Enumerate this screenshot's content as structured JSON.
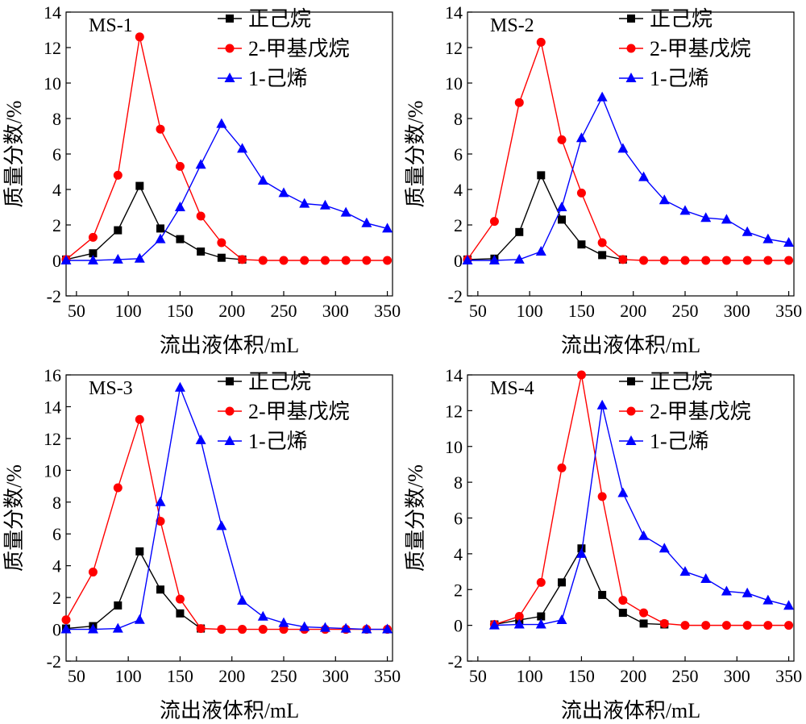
{
  "figure": {
    "panel_count": 4
  },
  "chart_data": [
    {
      "type": "line",
      "title": "MS-1",
      "xlabel": "流出液体积/mL",
      "ylabel": "质量分数/%",
      "xlim": [
        40,
        355
      ],
      "ylim": [
        -2,
        14
      ],
      "xticks": [
        50,
        100,
        150,
        200,
        250,
        300,
        350
      ],
      "yticks": [
        -2,
        0,
        2,
        4,
        6,
        8,
        10,
        12,
        14
      ],
      "legend_position": "top-right",
      "series": [
        {
          "name": "正己烷",
          "color": "#000000",
          "marker": "square",
          "x": [
            40,
            66,
            90,
            111,
            131,
            150,
            170,
            190,
            210
          ],
          "y": [
            0.05,
            0.4,
            1.7,
            4.2,
            1.8,
            1.2,
            0.5,
            0.15,
            0.05
          ]
        },
        {
          "name": "2-甲基戊烷",
          "color": "#ff0000",
          "marker": "circle",
          "x": [
            40,
            66,
            90,
            111,
            131,
            150,
            170,
            190,
            210,
            230,
            250,
            270,
            290,
            310,
            330,
            350
          ],
          "y": [
            0.05,
            1.3,
            4.8,
            12.6,
            7.4,
            5.3,
            2.5,
            1.0,
            0.05,
            0,
            0,
            0,
            0,
            0,
            0,
            0
          ]
        },
        {
          "name": "1-己烯",
          "color": "#0000ff",
          "marker": "triangle",
          "x": [
            40,
            66,
            90,
            111,
            131,
            150,
            170,
            190,
            210,
            230,
            250,
            270,
            290,
            310,
            330,
            350
          ],
          "y": [
            0,
            0,
            0.05,
            0.1,
            1.2,
            3.0,
            5.4,
            7.7,
            6.3,
            4.5,
            3.8,
            3.2,
            3.1,
            2.7,
            2.1,
            1.8
          ]
        }
      ]
    },
    {
      "type": "line",
      "title": "MS-2",
      "xlabel": "流出液体积/mL",
      "ylabel": "质量分数/%",
      "xlim": [
        40,
        355
      ],
      "ylim": [
        -2,
        14
      ],
      "xticks": [
        50,
        100,
        150,
        200,
        250,
        300,
        350
      ],
      "yticks": [
        -2,
        0,
        2,
        4,
        6,
        8,
        10,
        12,
        14
      ],
      "legend_position": "top-right",
      "series": [
        {
          "name": "正己烷",
          "color": "#000000",
          "marker": "square",
          "x": [
            40,
            66,
            90,
            111,
            131,
            150,
            170,
            190
          ],
          "y": [
            0.05,
            0.1,
            1.6,
            4.8,
            2.3,
            0.9,
            0.3,
            0.05
          ]
        },
        {
          "name": "2-甲基戊烷",
          "color": "#ff0000",
          "marker": "circle",
          "x": [
            40,
            66,
            90,
            111,
            131,
            150,
            170,
            190,
            210,
            230,
            250,
            270,
            290,
            310,
            330,
            350
          ],
          "y": [
            0.05,
            2.2,
            8.9,
            12.3,
            6.8,
            3.8,
            1.0,
            0.05,
            0,
            0,
            0,
            0,
            0,
            0,
            0,
            0
          ]
        },
        {
          "name": "1-己烯",
          "color": "#0000ff",
          "marker": "triangle",
          "x": [
            40,
            66,
            90,
            111,
            131,
            150,
            170,
            190,
            210,
            230,
            250,
            270,
            290,
            310,
            330,
            350
          ],
          "y": [
            0,
            0,
            0.05,
            0.5,
            3.0,
            6.9,
            9.2,
            6.3,
            4.7,
            3.4,
            2.8,
            2.4,
            2.3,
            1.6,
            1.2,
            1.0
          ]
        }
      ]
    },
    {
      "type": "line",
      "title": "MS-3",
      "xlabel": "流出液体积/mL",
      "ylabel": "质量分数/%",
      "xlim": [
        40,
        355
      ],
      "ylim": [
        -2,
        16
      ],
      "xticks": [
        50,
        100,
        150,
        200,
        250,
        300,
        350
      ],
      "yticks": [
        -2,
        0,
        2,
        4,
        6,
        8,
        10,
        12,
        14,
        16
      ],
      "legend_position": "top-right",
      "series": [
        {
          "name": "正己烷",
          "color": "#000000",
          "marker": "square",
          "x": [
            40,
            66,
            90,
            111,
            131,
            150,
            170
          ],
          "y": [
            0.05,
            0.2,
            1.5,
            4.9,
            2.5,
            1.0,
            0.05
          ]
        },
        {
          "name": "2-甲基戊烷",
          "color": "#ff0000",
          "marker": "circle",
          "x": [
            40,
            66,
            90,
            111,
            131,
            150,
            170,
            190,
            210,
            230,
            250,
            270,
            290,
            310,
            330,
            350
          ],
          "y": [
            0.6,
            3.6,
            8.9,
            13.2,
            6.8,
            1.9,
            0.05,
            0,
            0,
            0,
            0,
            0,
            0,
            0,
            0,
            0
          ]
        },
        {
          "name": "1-己烯",
          "color": "#0000ff",
          "marker": "triangle",
          "x": [
            40,
            66,
            90,
            111,
            131,
            150,
            170,
            190,
            210,
            230,
            250,
            270,
            290,
            310,
            330,
            350
          ],
          "y": [
            0,
            0,
            0.05,
            0.6,
            8.0,
            15.2,
            11.9,
            6.5,
            1.8,
            0.8,
            0.4,
            0.15,
            0.1,
            0.05,
            0,
            0
          ]
        }
      ]
    },
    {
      "type": "line",
      "title": "MS-4",
      "xlabel": "流出液体积/mL",
      "ylabel": "质量分数/%",
      "xlim": [
        40,
        355
      ],
      "ylim": [
        -2,
        14
      ],
      "xticks": [
        50,
        100,
        150,
        200,
        250,
        300,
        350
      ],
      "yticks": [
        -2,
        0,
        2,
        4,
        6,
        8,
        10,
        12,
        14
      ],
      "legend_position": "top-right",
      "series": [
        {
          "name": "正己烷",
          "color": "#000000",
          "marker": "square",
          "x": [
            66,
            90,
            111,
            131,
            150,
            170,
            190,
            210,
            230
          ],
          "y": [
            0.05,
            0.3,
            0.5,
            2.4,
            4.3,
            1.7,
            0.7,
            0.1,
            0.05
          ]
        },
        {
          "name": "2-甲基戊烷",
          "color": "#ff0000",
          "marker": "circle",
          "x": [
            66,
            90,
            111,
            131,
            150,
            170,
            190,
            210,
            230,
            250,
            270,
            290,
            310,
            330,
            350
          ],
          "y": [
            0.05,
            0.5,
            2.4,
            8.8,
            14.0,
            7.2,
            1.4,
            0.7,
            0.1,
            0,
            0,
            0,
            0,
            0,
            0
          ]
        },
        {
          "name": "1-己烯",
          "color": "#0000ff",
          "marker": "triangle",
          "x": [
            66,
            90,
            111,
            131,
            150,
            170,
            190,
            210,
            230,
            250,
            270,
            290,
            310,
            330,
            350
          ],
          "y": [
            0,
            0.05,
            0.05,
            0.3,
            4.0,
            12.3,
            7.4,
            5.0,
            4.3,
            3.0,
            2.6,
            1.9,
            1.8,
            1.4,
            1.1
          ]
        }
      ]
    }
  ]
}
